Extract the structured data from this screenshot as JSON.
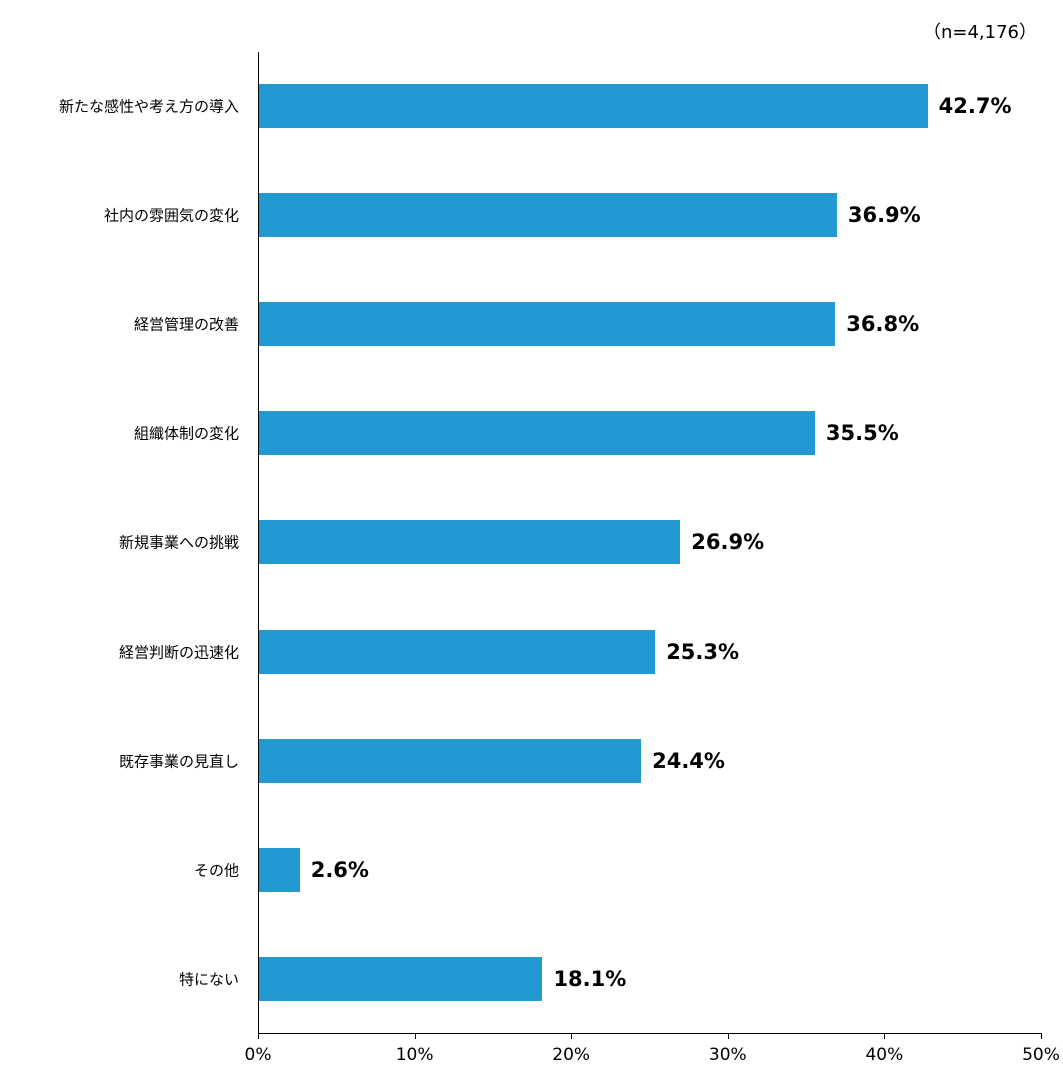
{
  "chart_data": {
    "type": "bar",
    "orientation": "horizontal",
    "title": "",
    "annotation": "（n=4,176）",
    "categories": [
      "新たな感性や考え方の導入",
      "社内の雰囲気の変化",
      "経営管理の改善",
      "組織体制の変化",
      "新規事業への挑戦",
      "経営判断の迅速化",
      "既存事業の見直し",
      "その他",
      "特にない"
    ],
    "values": [
      42.7,
      36.9,
      36.8,
      35.5,
      26.9,
      25.3,
      24.4,
      2.6,
      18.1
    ],
    "value_labels": [
      "42.7%",
      "36.9%",
      "36.8%",
      "35.5%",
      "26.9%",
      "25.3%",
      "24.4%",
      "2.6%",
      "18.1%"
    ],
    "xlabel": "",
    "ylabel": "",
    "xlim": [
      0,
      50
    ],
    "x_ticks": [
      "0%",
      "10%",
      "20%",
      "30%",
      "40%",
      "50%"
    ],
    "grid": false,
    "legend": null,
    "bar_color": "#2299D0"
  }
}
